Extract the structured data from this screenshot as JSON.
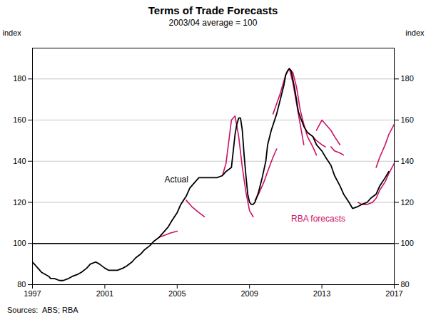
{
  "chart_data": {
    "type": "line",
    "title": "Terms of Trade Forecasts",
    "subtitle": "2003/04 average = 100",
    "ylabel": "index",
    "y2label": "index",
    "source": "Sources:  ABS; RBA",
    "xlim": [
      1997,
      2017
    ],
    "xticks": [
      1997,
      2001,
      2005,
      2009,
      2013,
      2017
    ],
    "ylim": [
      80,
      195
    ],
    "yticks": [
      80,
      100,
      120,
      140,
      160,
      180
    ],
    "y2lim": [
      80,
      195
    ],
    "y2ticks": [
      80,
      100,
      120,
      140,
      160,
      180
    ],
    "grid": "y",
    "hline": {
      "y": 100,
      "color": "#000000"
    },
    "series": [
      {
        "name": "Actual",
        "color": "#000000",
        "x": [
          1997.0,
          1997.1,
          1997.2,
          1997.3,
          1997.5,
          1997.7,
          1997.9,
          1998.0,
          1998.2,
          1998.5,
          1998.7,
          1999.0,
          1999.2,
          1999.5,
          1999.7,
          2000.0,
          2000.2,
          2000.5,
          2000.7,
          2001.0,
          2001.2,
          2001.5,
          2001.7,
          2002.0,
          2002.2,
          2002.5,
          2002.7,
          2003.0,
          2003.2,
          2003.5,
          2003.7,
          2004.0,
          2004.2,
          2004.5,
          2004.7,
          2005.0,
          2005.2,
          2005.5,
          2005.7,
          2006.0,
          2006.2,
          2006.5,
          2006.7,
          2007.0,
          2007.2,
          2007.5,
          2007.7,
          2008.0,
          2008.1,
          2008.2,
          2008.3,
          2008.4,
          2008.5,
          2008.6,
          2008.7,
          2008.8,
          2008.9,
          2009.0,
          2009.1,
          2009.2,
          2009.3,
          2009.5,
          2009.7,
          2009.9,
          2010.0,
          2010.2,
          2010.5,
          2010.7,
          2010.9,
          2011.0,
          2011.1,
          2011.2,
          2011.3,
          2011.5,
          2011.7,
          2012.0,
          2012.2,
          2012.5,
          2012.7,
          2013.0,
          2013.2,
          2013.5,
          2013.7,
          2014.0,
          2014.2,
          2014.5,
          2014.7,
          2015.0,
          2015.2,
          2015.5,
          2015.7,
          2016.0,
          2016.2,
          2016.5,
          2016.7
        ],
        "values": [
          91,
          90,
          89,
          88,
          86,
          85,
          84,
          83,
          83,
          82,
          82,
          83,
          84,
          85,
          86,
          88,
          90,
          91,
          90,
          88,
          87,
          87,
          87,
          88,
          89,
          91,
          93,
          95,
          97,
          99,
          101,
          103,
          105,
          108,
          111,
          115,
          119,
          123,
          127,
          130,
          132,
          132,
          132,
          132,
          132,
          133,
          135,
          137,
          145,
          153,
          158,
          161,
          161,
          155,
          143,
          133,
          124,
          120,
          119,
          119,
          120,
          125,
          132,
          140,
          148,
          155,
          163,
          170,
          177,
          182,
          184,
          185,
          184,
          175,
          164,
          157,
          154,
          152,
          148,
          145,
          142,
          138,
          133,
          128,
          124,
          120,
          117,
          118,
          119,
          120,
          122,
          124,
          128,
          132,
          135
        ]
      },
      {
        "color": "#CC1166",
        "x": [
          2003.7,
          2004.0,
          2004.3,
          2004.6,
          2005.0
        ],
        "values": [
          101,
          103,
          104,
          105,
          106
        ]
      },
      {
        "color": "#CC1166",
        "x": [
          2005.5,
          2005.8,
          2006.2,
          2006.5
        ],
        "values": [
          121,
          118,
          115,
          113
        ]
      },
      {
        "color": "#CC1166",
        "x": [
          2007.5,
          2007.7,
          2008.0,
          2008.2,
          2008.4,
          2008.6,
          2008.8,
          2009.0,
          2009.2
        ],
        "values": [
          133,
          139,
          160,
          162,
          152,
          137,
          125,
          116,
          113
        ]
      },
      {
        "color": "#CC1166",
        "x": [
          2009.3,
          2009.5,
          2009.8,
          2010.0,
          2010.3,
          2010.5
        ],
        "values": [
          121,
          124,
          130,
          135,
          142,
          146
        ]
      },
      {
        "color": "#CC1166",
        "x": [
          2010.3,
          2010.5,
          2010.7,
          2011.0,
          2011.2,
          2011.4,
          2011.6,
          2011.8,
          2012.0
        ],
        "values": [
          163,
          168,
          173,
          182,
          185,
          178,
          168,
          158,
          148
        ]
      },
      {
        "color": "#CC1166",
        "x": [
          2011.2,
          2011.4,
          2011.6,
          2011.8,
          2012.0,
          2012.2,
          2012.5,
          2012.7
        ],
        "values": [
          185,
          183,
          176,
          165,
          158,
          152,
          147,
          143
        ]
      },
      {
        "color": "#CC1166",
        "x": [
          2012.2,
          2012.5,
          2012.7,
          2013.0,
          2013.2
        ],
        "values": [
          154,
          152,
          150,
          148,
          147
        ]
      },
      {
        "color": "#CC1166",
        "x": [
          2012.7,
          2013.0,
          2013.2,
          2013.5,
          2013.7,
          2014.0
        ],
        "values": [
          155,
          160,
          158,
          155,
          152,
          148
        ]
      },
      {
        "color": "#CC1166",
        "x": [
          2013.5,
          2013.7,
          2014.0,
          2014.2
        ],
        "values": [
          147,
          145,
          144,
          143
        ]
      },
      {
        "color": "#CC1166",
        "x": [
          2015.0,
          2015.2,
          2015.5,
          2015.8,
          2016.0,
          2016.2,
          2016.5,
          2016.7,
          2017.0
        ],
        "values": [
          120,
          119,
          119,
          120,
          122,
          126,
          130,
          134,
          139
        ]
      },
      {
        "color": "#CC1166",
        "x": [
          2016.0,
          2016.2,
          2016.5,
          2016.7,
          2017.0
        ],
        "values": [
          137,
          142,
          148,
          153,
          158
        ]
      }
    ],
    "annotations": [
      {
        "text": "Actual",
        "x": 2004.3,
        "y": 131,
        "color": "#000000"
      },
      {
        "text": "RBA forecasts",
        "x": 2011.3,
        "y": 112,
        "color": "#CC1166"
      }
    ]
  }
}
